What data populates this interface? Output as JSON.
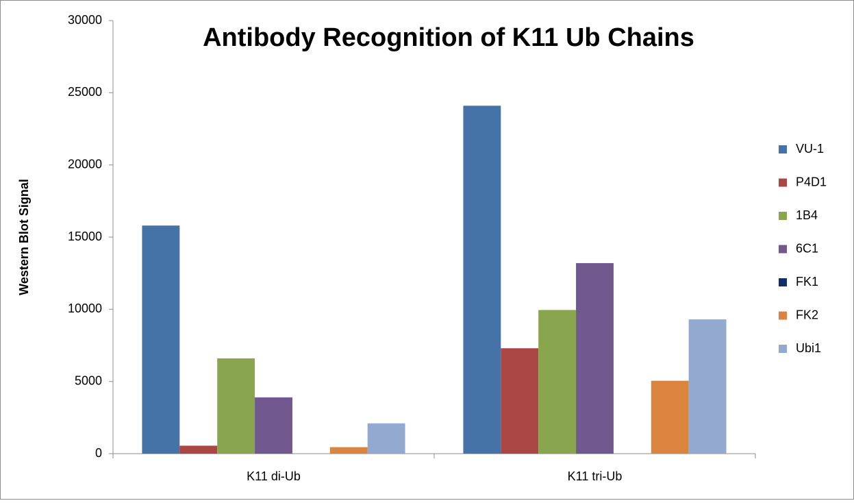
{
  "chart_data": {
    "type": "bar",
    "title": "Antibody Recognition of K11 Ub Chains",
    "y_label": "Western Blot Signal",
    "categories": [
      "K11 di-Ub",
      "K11 tri-Ub"
    ],
    "series": [
      {
        "name": "VU-1",
        "color": "#4572a7",
        "values": [
          15800,
          24100
        ]
      },
      {
        "name": "P4D1",
        "color": "#aa4643",
        "values": [
          550,
          7300
        ]
      },
      {
        "name": "1B4",
        "color": "#89a54e",
        "values": [
          6600,
          9950
        ]
      },
      {
        "name": "6C1",
        "color": "#71588f",
        "values": [
          3900,
          13200
        ]
      },
      {
        "name": "FK1",
        "color": "#132f6b",
        "values": [
          0,
          0
        ]
      },
      {
        "name": "FK2",
        "color": "#db843d",
        "values": [
          450,
          5050
        ]
      },
      {
        "name": "Ubi1",
        "color": "#93a9cf",
        "values": [
          2100,
          9300
        ]
      }
    ],
    "ylim": [
      0,
      30000
    ],
    "yticks": [
      0,
      5000,
      10000,
      15000,
      20000,
      25000,
      30000
    ],
    "legend": "right"
  }
}
